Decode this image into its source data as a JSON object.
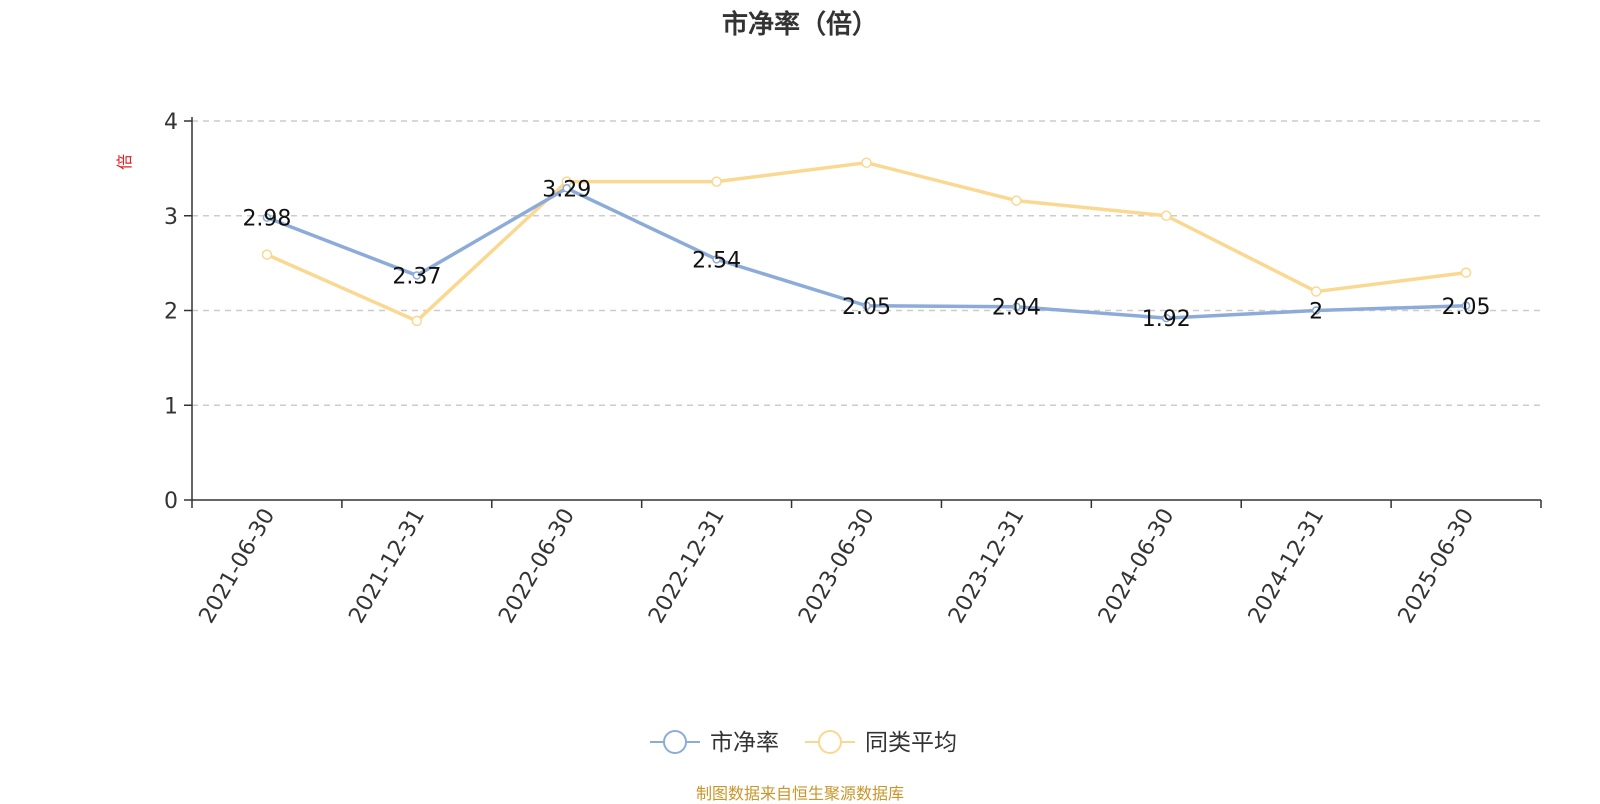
{
  "chart_data": {
    "type": "line",
    "title": "市净率（倍）",
    "ylabel": "倍",
    "xlabel": "",
    "categories": [
      "2021-06-30",
      "2021-12-31",
      "2022-06-30",
      "2022-12-31",
      "2023-06-30",
      "2023-12-31",
      "2024-06-30",
      "2024-12-31",
      "2025-06-30"
    ],
    "ylim": [
      0,
      4
    ],
    "yticks": [
      0,
      1,
      2,
      3,
      4
    ],
    "grid": true,
    "legend_position": "bottom-center",
    "series": [
      {
        "name": "市净率",
        "color": "#8dabd9",
        "values": [
          2.98,
          2.37,
          3.29,
          2.54,
          2.05,
          2.04,
          1.92,
          2,
          2.05
        ],
        "labels": [
          "2.98",
          "2.37",
          "3.29",
          "2.54",
          "2.05",
          "2.04",
          "1.92",
          "2",
          "2.05"
        ]
      },
      {
        "name": "同类平均",
        "color": "#fbd891",
        "values": [
          2.59,
          1.89,
          3.36,
          3.36,
          3.56,
          3.16,
          3.0,
          2.2,
          2.4
        ]
      }
    ],
    "source": "制图数据来自恒生聚源数据库"
  }
}
